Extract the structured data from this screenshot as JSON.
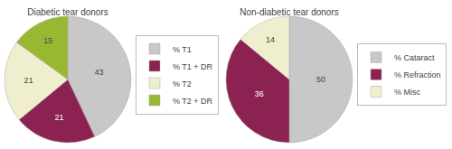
{
  "chart_data": [
    {
      "type": "pie",
      "title": "Diabetic tear donors",
      "categories": [
        "% T1",
        "% T1 + DR",
        "% T2",
        "% T2 + DR"
      ],
      "values": [
        43,
        21,
        21,
        15
      ],
      "colors": [
        "#c8c8c8",
        "#8b2252",
        "#efefd0",
        "#99b832"
      ],
      "data_labels": true,
      "legend": "right"
    },
    {
      "type": "pie",
      "title": "Non-diabetic tear donors",
      "categories": [
        "% Cataract",
        "% Refraction",
        "% Misc"
      ],
      "values": [
        50,
        36,
        14
      ],
      "colors": [
        "#c8c8c8",
        "#8b2252",
        "#efefd0"
      ],
      "data_labels": true,
      "legend": "right"
    }
  ]
}
